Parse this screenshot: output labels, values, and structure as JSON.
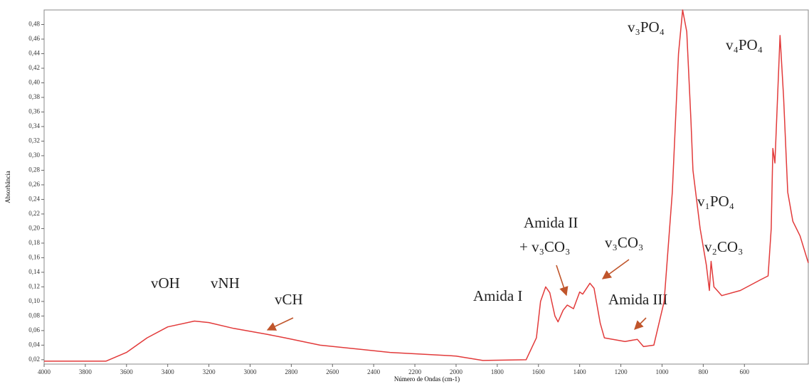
{
  "chart_data": {
    "type": "line",
    "y_label": "Absorbância",
    "x_label": "Número de Ondas (cm-1)",
    "x": [
      4000,
      3700,
      3600,
      3500,
      3400,
      3270,
      3200,
      3080,
      2920,
      2830,
      2660,
      2320,
      2000,
      1870,
      1660,
      1610,
      1590,
      1565,
      1545,
      1520,
      1505,
      1480,
      1460,
      1430,
      1400,
      1385,
      1350,
      1330,
      1300,
      1280,
      1180,
      1120,
      1090,
      1040,
      990,
      950,
      920,
      900,
      880,
      860,
      850,
      815,
      785,
      770,
      762,
      748,
      710,
      620,
      520,
      485,
      470,
      462,
      452,
      427,
      410,
      390,
      365,
      330,
      290
    ],
    "values": [
      0.018,
      0.018,
      0.03,
      0.05,
      0.065,
      0.073,
      0.071,
      0.063,
      0.055,
      0.05,
      0.04,
      0.03,
      0.025,
      0.019,
      0.02,
      0.05,
      0.1,
      0.12,
      0.112,
      0.08,
      0.072,
      0.088,
      0.095,
      0.09,
      0.113,
      0.11,
      0.125,
      0.118,
      0.07,
      0.05,
      0.045,
      0.048,
      0.038,
      0.04,
      0.1,
      0.25,
      0.44,
      0.5,
      0.47,
      0.35,
      0.28,
      0.2,
      0.15,
      0.115,
      0.155,
      0.12,
      0.108,
      0.115,
      0.13,
      0.135,
      0.2,
      0.31,
      0.29,
      0.465,
      0.38,
      0.25,
      0.21,
      0.19,
      0.153
    ],
    "color": "#e23a3a",
    "xlim": [
      4000,
      290
    ],
    "ylim": [
      0.014,
      0.5
    ],
    "xticks": [
      4000,
      3800,
      3600,
      3400,
      3200,
      3000,
      2800,
      2600,
      2400,
      2200,
      2000,
      1800,
      1600,
      1400,
      1200,
      1000,
      800,
      600
    ],
    "yticks": [
      {
        "value": 0.02,
        "label": "0,02"
      },
      {
        "value": 0.04,
        "label": "0,04"
      },
      {
        "value": 0.06,
        "label": "0,06"
      },
      {
        "value": 0.08,
        "label": "0,08"
      },
      {
        "value": 0.1,
        "label": "0,10"
      },
      {
        "value": 0.12,
        "label": "0,12"
      },
      {
        "value": 0.14,
        "label": "0,14"
      },
      {
        "value": 0.16,
        "label": "0,16"
      },
      {
        "value": 0.18,
        "label": "0,18"
      },
      {
        "value": 0.2,
        "label": "0,20"
      },
      {
        "value": 0.22,
        "label": "0,22"
      },
      {
        "value": 0.24,
        "label": "0,24"
      },
      {
        "value": 0.26,
        "label": "0,26"
      },
      {
        "value": 0.28,
        "label": "0,28"
      },
      {
        "value": 0.3,
        "label": "0,30"
      },
      {
        "value": 0.32,
        "label": "0,32"
      },
      {
        "value": 0.34,
        "label": "0,34"
      },
      {
        "value": 0.36,
        "label": "0,36"
      },
      {
        "value": 0.38,
        "label": "0,38"
      },
      {
        "value": 0.4,
        "label": "0,40"
      },
      {
        "value": 0.42,
        "label": "0,42"
      },
      {
        "value": 0.44,
        "label": "0,44"
      },
      {
        "value": 0.46,
        "label": "0,46"
      },
      {
        "value": 0.48,
        "label": "0,48"
      }
    ],
    "annotations": [
      "vOH",
      "vNH",
      "vCH",
      "Amida I",
      "Amida II",
      "+ v₃CO₃",
      "v₃CO₃",
      "Amida III",
      "v₃PO₄",
      "v₄PO₄",
      "v₁PO₄",
      "v₂CO₃"
    ]
  }
}
